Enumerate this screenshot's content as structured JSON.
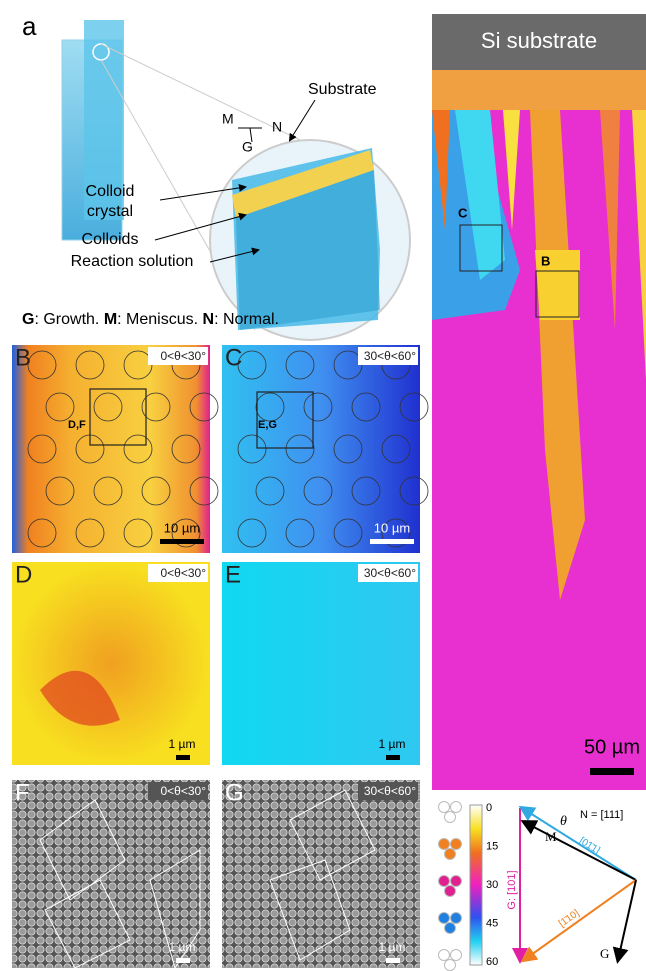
{
  "panel_a": {
    "label": "a",
    "substrate": "Substrate",
    "axis_m": "M",
    "axis_n": "N",
    "axis_g": "G",
    "colloid_crystal": [
      "Colloid",
      "crystal"
    ],
    "colloids": "Colloids",
    "reaction_solution": "Reaction solution"
  },
  "caption": [
    {
      "text": "G",
      "bold": true
    },
    {
      "text": ": Growth. ",
      "bold": false
    },
    {
      "text": "M",
      "bold": true
    },
    {
      "text": ": Meniscus. ",
      "bold": false
    },
    {
      "text": "N",
      "bold": true
    },
    {
      "text": ": Normal.",
      "bold": false
    }
  ],
  "map": {
    "title": "Si substrate",
    "box_c": "C",
    "box_b": "B",
    "scale": "50 µm"
  },
  "panels": [
    {
      "label": "B",
      "range": "0<θ<30°",
      "inset": "D,F",
      "scale": "10 µm"
    },
    {
      "label": "C",
      "range": "30<θ<60°",
      "inset": "E,G",
      "scale": "10 µm"
    },
    {
      "label": "D",
      "range": "0<θ<30°",
      "scale": "1 µm"
    },
    {
      "label": "E",
      "range": "30<θ<60°",
      "scale": "1 µm"
    },
    {
      "label": "F",
      "range": "0<θ<30°",
      "scale": "1 µm"
    },
    {
      "label": "G",
      "range": "30<θ<60°",
      "scale": "1 µm"
    }
  ],
  "legend": {
    "ticks": [
      "0",
      "15",
      "30",
      "45",
      "60"
    ],
    "growth": "G: [101]",
    "normal": "N = [111]",
    "dir_cyan": "[01̄1]",
    "dir_orange": "[1̄10]",
    "theta": "θ",
    "meniscus": "M",
    "growth_arrow": "G"
  }
}
